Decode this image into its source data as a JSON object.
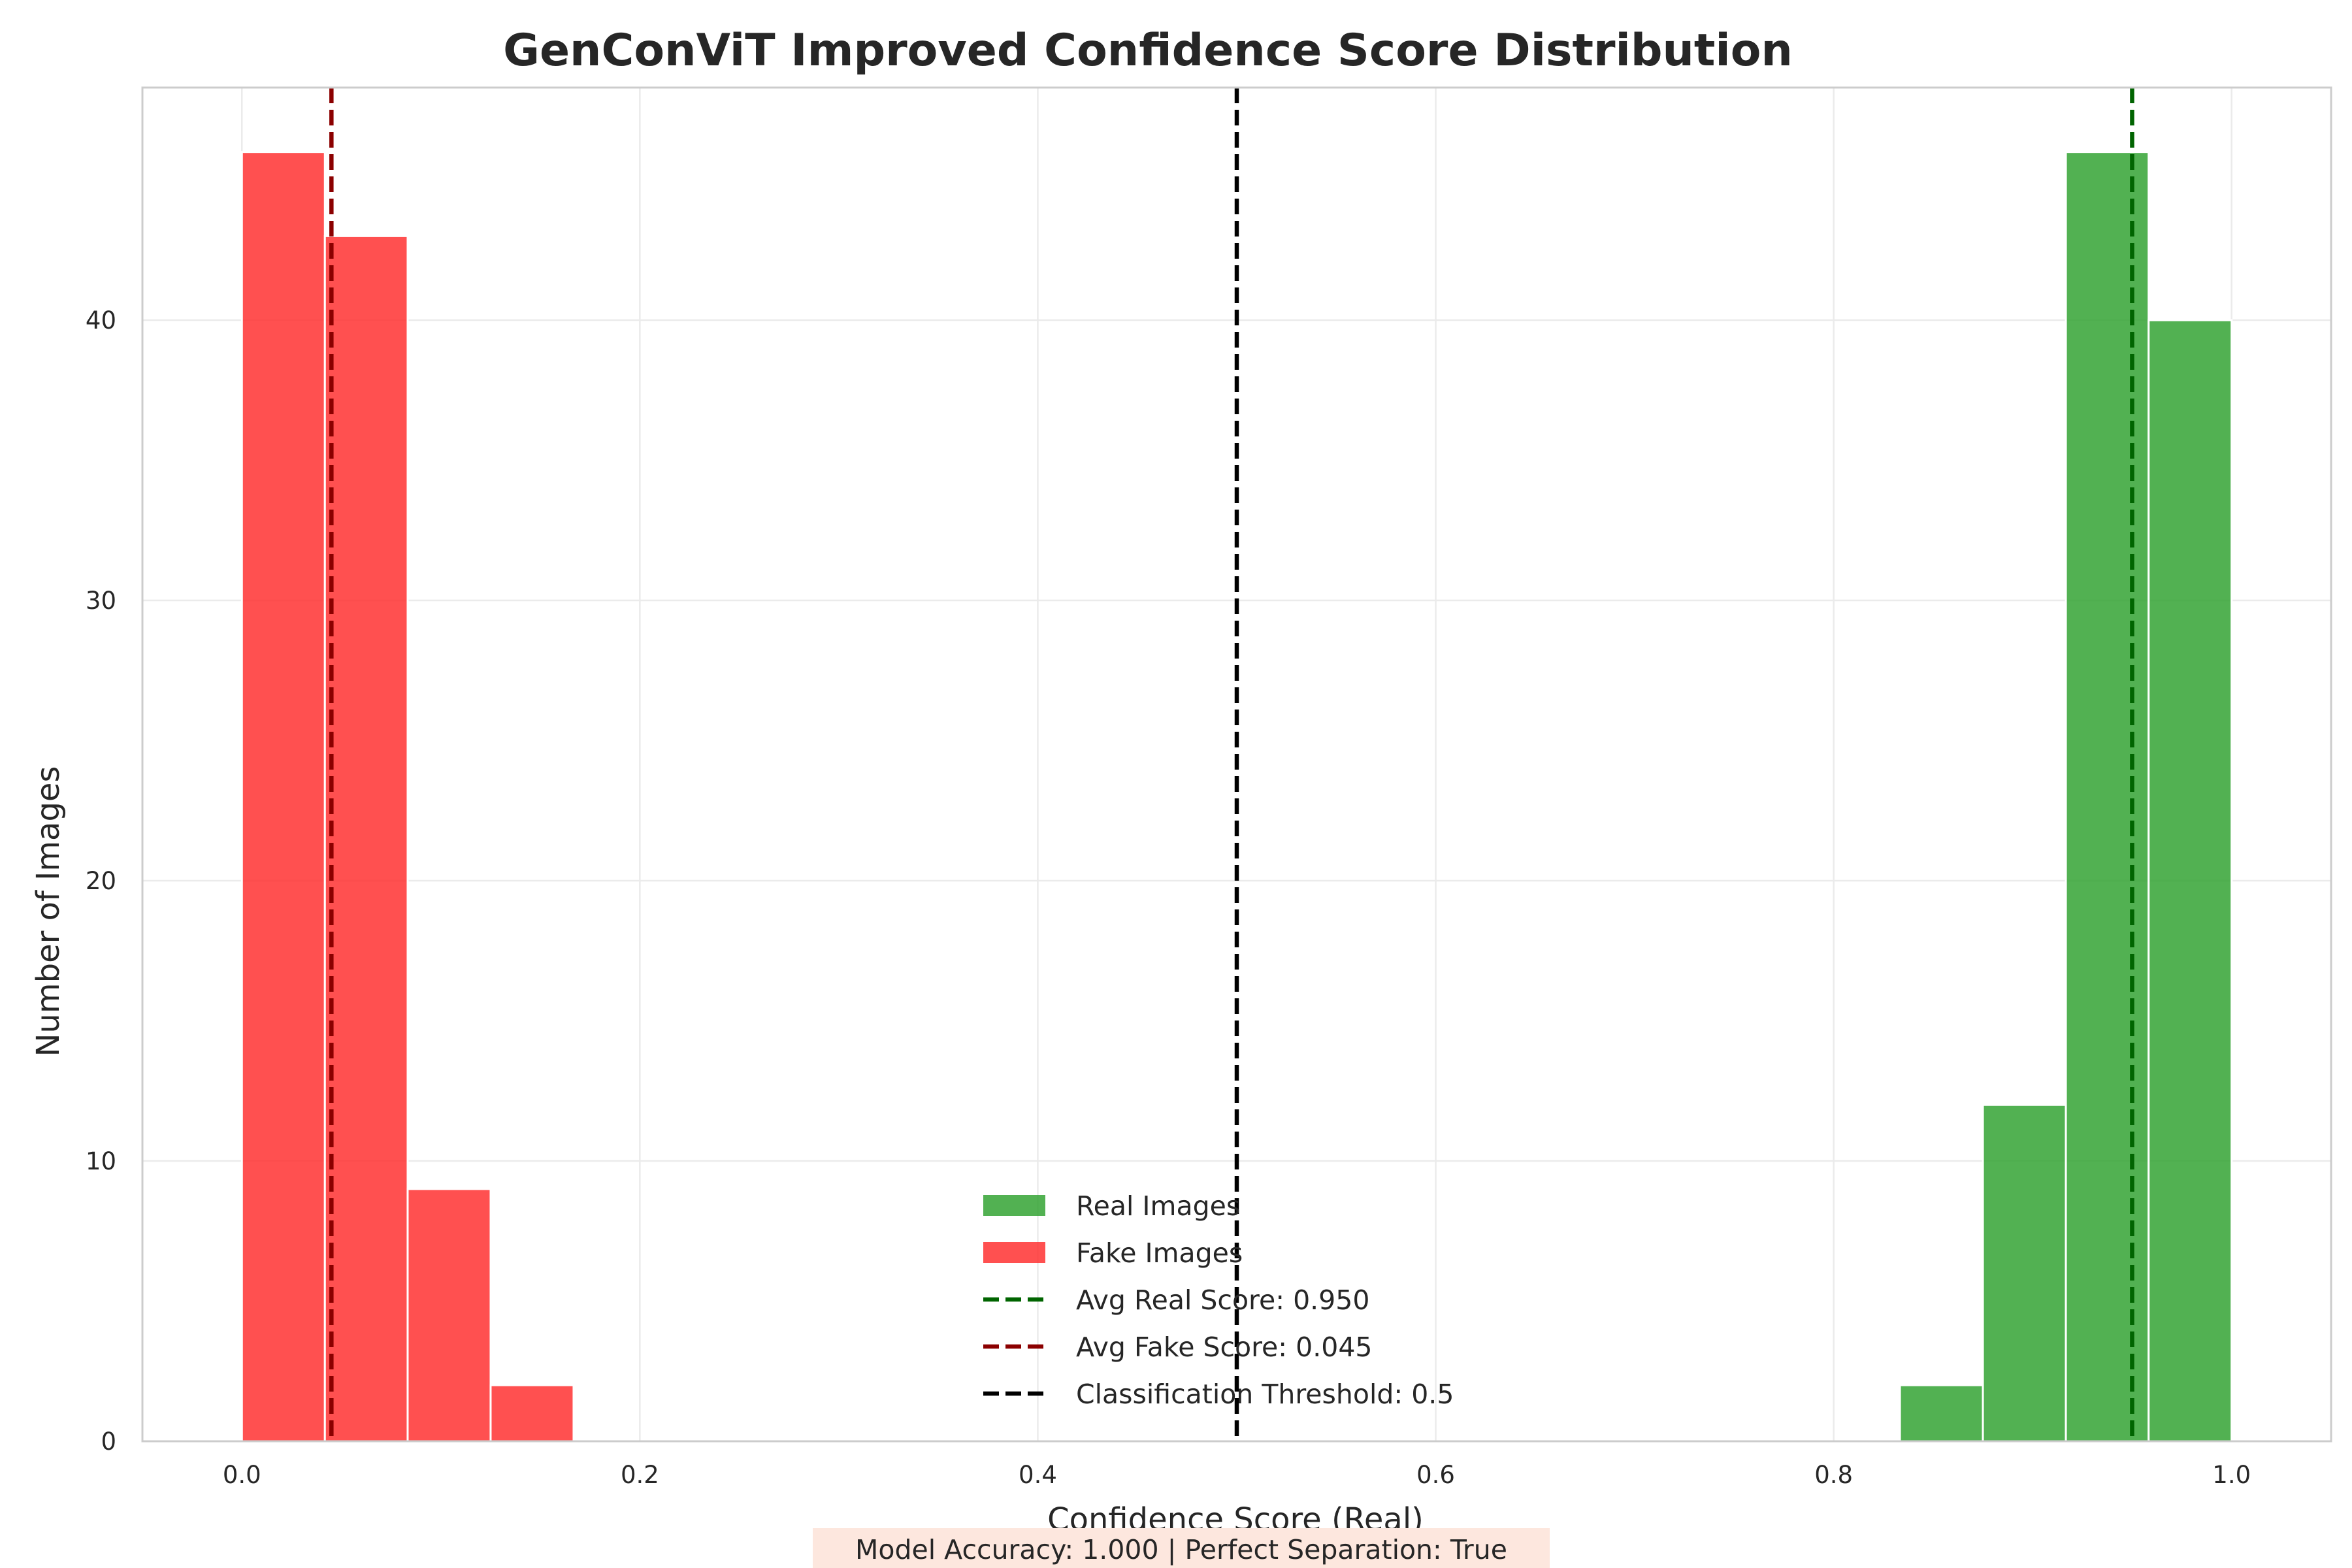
{
  "chart_data": {
    "type": "bar",
    "title": "GenConViT Improved Confidence Score Distribution",
    "xlabel": "Confidence Score (Real)",
    "ylabel": "Number of Images",
    "xlim": [
      -0.05,
      1.05
    ],
    "ylim": [
      0,
      48.3
    ],
    "xticks": [
      0.0,
      0.2,
      0.4,
      0.6,
      0.8,
      1.0
    ],
    "xtick_labels": [
      "0.0",
      "0.2",
      "0.4",
      "0.6",
      "0.8",
      "1.0"
    ],
    "yticks": [
      0,
      10,
      20,
      30,
      40
    ],
    "ytick_labels": [
      "0",
      "10",
      "20",
      "30",
      "40"
    ],
    "grid": true,
    "legend_position": "bottom-center",
    "series": [
      {
        "name": "Real Images",
        "color": "#2ca02c",
        "bins": [
          {
            "x0": 0.8333,
            "x1": 0.875,
            "count": 2
          },
          {
            "x0": 0.875,
            "x1": 0.9167,
            "count": 12
          },
          {
            "x0": 0.9167,
            "x1": 0.9583,
            "count": 46
          },
          {
            "x0": 0.9583,
            "x1": 1.0,
            "count": 40
          }
        ]
      },
      {
        "name": "Fake Images",
        "color": "#ff2a2a",
        "bins": [
          {
            "x0": 0.0,
            "x1": 0.0417,
            "count": 46
          },
          {
            "x0": 0.0417,
            "x1": 0.0833,
            "count": 43
          },
          {
            "x0": 0.0833,
            "x1": 0.125,
            "count": 9
          },
          {
            "x0": 0.125,
            "x1": 0.1667,
            "count": 2
          }
        ]
      }
    ],
    "reference_lines": [
      {
        "label": "Avg Real Score: 0.950",
        "x": 0.95,
        "color": "#006400"
      },
      {
        "label": "Avg Fake Score: 0.045",
        "x": 0.045,
        "color": "#8b0000"
      },
      {
        "label": "Classification Threshold: 0.5",
        "x": 0.5,
        "color": "#000000"
      }
    ],
    "footnote": "Model Accuracy: 1.000 | Perfect Separation: True"
  }
}
